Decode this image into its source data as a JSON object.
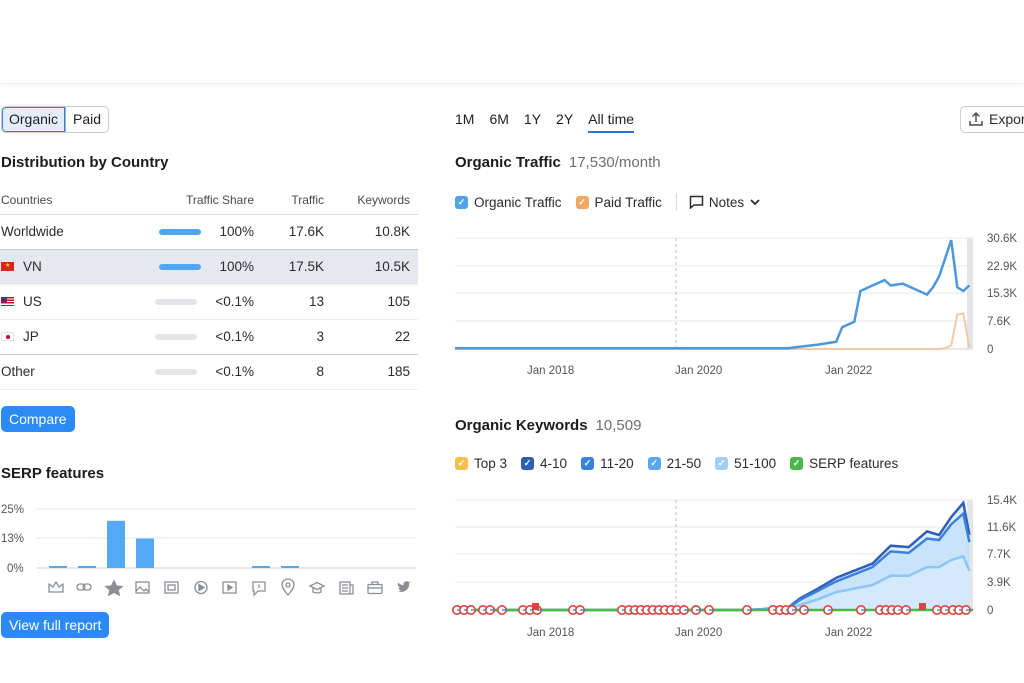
{
  "tabs": {
    "organic": "Organic",
    "paid": "Paid"
  },
  "distribution": {
    "title": "Distribution by Country",
    "columns": [
      "Countries",
      "Traffic Share",
      "Traffic",
      "Keywords"
    ],
    "rows": [
      {
        "country": "Worldwide",
        "share": "100%",
        "share_fraction": 1.0,
        "traffic": "17.6K",
        "keywords": "10.8K"
      },
      {
        "country": "VN",
        "share": "100%",
        "share_fraction": 1.0,
        "traffic": "17.5K",
        "keywords": "10.5K"
      },
      {
        "country": "US",
        "share": "<0.1%",
        "share_fraction": 0.0,
        "traffic": "13",
        "keywords": "105"
      },
      {
        "country": "JP",
        "share": "<0.1%",
        "share_fraction": 0.0,
        "traffic": "3",
        "keywords": "22"
      },
      {
        "country": "Other",
        "share": "<0.1%",
        "share_fraction": 0.0,
        "traffic": "8",
        "keywords": "185"
      }
    ]
  },
  "compare_label": "Compare",
  "serp": {
    "title": "SERP features",
    "y_ticks": [
      "25%",
      "13%",
      "0%"
    ],
    "icons": [
      "crown-icon",
      "link-icon",
      "star-icon",
      "image-icon",
      "gallery-icon",
      "video-play-icon",
      "video-icon",
      "faq-icon",
      "location-pin-icon",
      "graduation-cap-icon",
      "news-icon",
      "briefcase-icon",
      "twitter-icon"
    ]
  },
  "view_full_report_label": "View full report",
  "ranges": [
    "1M",
    "6M",
    "1Y",
    "2Y",
    "All time"
  ],
  "active_range": "All time",
  "export_label": "Expor",
  "organic_traffic": {
    "title": "Organic Traffic",
    "value": "17,530/month",
    "legend": [
      {
        "label": "Organic Traffic",
        "color": "#4fa3ea"
      },
      {
        "label": "Paid Traffic",
        "color": "#f2a765"
      }
    ],
    "notes_label": "Notes",
    "y_ticks": [
      "30.6K",
      "22.9K",
      "15.3K",
      "7.6K",
      "0"
    ],
    "x_ticks": [
      "Jan 2018",
      "Jan 2020",
      "Jan 2022"
    ]
  },
  "organic_keywords": {
    "title": "Organic Keywords",
    "value": "10,509",
    "legend": [
      {
        "label": "Top 3",
        "color": "#f5c04a"
      },
      {
        "label": "4-10",
        "color": "#2f5db8"
      },
      {
        "label": "11-20",
        "color": "#3b82dc"
      },
      {
        "label": "21-50",
        "color": "#56a9ee"
      },
      {
        "label": "51-100",
        "color": "#9fd0f7"
      },
      {
        "label": "SERP features",
        "color": "#4cb849"
      }
    ],
    "y_ticks": [
      "15.4K",
      "11.6K",
      "7.7K",
      "3.9K",
      "0"
    ],
    "x_ticks": [
      "Jan 2018",
      "Jan 2020",
      "Jan 2022"
    ]
  },
  "chart_data": [
    {
      "type": "bar",
      "title": "SERP features",
      "ylim": [
        0,
        25
      ],
      "categories": [
        "crown",
        "link",
        "star",
        "image",
        "gallery",
        "video-play",
        "video",
        "faq",
        "location",
        "cap",
        "news",
        "briefcase",
        "twitter"
      ],
      "values": [
        0.5,
        0.5,
        20,
        12.5,
        0,
        0,
        0,
        0,
        0,
        0,
        0,
        0,
        0
      ],
      "values_small": [
        0.5,
        0.5,
        0,
        0,
        0,
        0,
        0,
        0.5,
        0.5,
        0,
        0,
        0,
        0
      ]
    },
    {
      "type": "line",
      "title": "Organic Traffic",
      "ylim": [
        0,
        30600
      ],
      "x": [
        "2016-06",
        "2017-01",
        "2018-01",
        "2019-01",
        "2019-10",
        "2020-06",
        "2021-01",
        "2021-03",
        "2021-06",
        "2021-09",
        "2021-10",
        "2021-12",
        "2022-01",
        "2022-03",
        "2022-05",
        "2022-06",
        "2022-08",
        "2022-10",
        "2022-12",
        "2023-01",
        "2023-02",
        "2023-03",
        "2023-04",
        "2023-05",
        "2023-06",
        "2023-07"
      ],
      "series": [
        {
          "name": "Organic Traffic",
          "values": [
            200,
            200,
            200,
            200,
            200,
            200,
            200,
            600,
            1200,
            2000,
            6000,
            7500,
            16000,
            17500,
            19000,
            17500,
            18000,
            16500,
            15000,
            17000,
            20000,
            25000,
            30000,
            17000,
            16000,
            17530
          ]
        },
        {
          "name": "Paid Traffic",
          "values": [
            0,
            0,
            0,
            0,
            0,
            0,
            0,
            0,
            0,
            0,
            0,
            0,
            0,
            0,
            0,
            0,
            0,
            0,
            0,
            0,
            0,
            200,
            1000,
            9500,
            9800,
            300
          ]
        }
      ]
    },
    {
      "type": "area",
      "title": "Organic Keywords",
      "ylim": [
        0,
        15400
      ],
      "x": [
        "2016-06",
        "2017-01",
        "2018-01",
        "2019-01",
        "2019-10",
        "2020-06",
        "2021-01",
        "2021-03",
        "2021-06",
        "2021-09",
        "2021-12",
        "2022-03",
        "2022-06",
        "2022-09",
        "2022-12",
        "2023-02",
        "2023-04",
        "2023-06",
        "2023-07"
      ],
      "series": [
        {
          "name": "4-10",
          "values": [
            0,
            0,
            0,
            0,
            0,
            0,
            300,
            1600,
            3000,
            4500,
            5500,
            6500,
            9000,
            8800,
            11000,
            10500,
            13000,
            15000,
            10509
          ]
        },
        {
          "name": "11-20",
          "values": [
            0,
            0,
            0,
            0,
            0,
            0,
            250,
            1400,
            2700,
            4000,
            5000,
            6000,
            8200,
            8000,
            10000,
            9800,
            12000,
            13500,
            9500
          ]
        },
        {
          "name": "51-100",
          "values": [
            0,
            0,
            0,
            0,
            0,
            0,
            150,
            700,
            1500,
            2500,
            3000,
            3500,
            4800,
            4800,
            6000,
            6000,
            7000,
            7500,
            5500
          ]
        }
      ]
    }
  ]
}
